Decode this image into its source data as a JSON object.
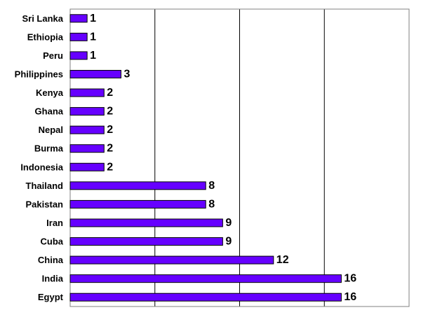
{
  "chart_data": {
    "type": "bar",
    "orientation": "horizontal",
    "title": "",
    "xlabel": "",
    "ylabel": "",
    "categories": [
      "Sri Lanka",
      "Ethiopia",
      "Peru",
      "Philippines",
      "Kenya",
      "Ghana",
      "Nepal",
      "Burma",
      "Indonesia",
      "Thailand",
      "Pakistan",
      "Iran",
      "Cuba",
      "China",
      "India",
      "Egypt"
    ],
    "values": [
      1,
      1,
      1,
      3,
      2,
      2,
      2,
      2,
      2,
      8,
      8,
      9,
      9,
      12,
      16,
      16
    ],
    "xlim": [
      0,
      20
    ],
    "x_gridlines": [
      5,
      10,
      15
    ],
    "x_tick_labels_shown": false,
    "legend": "none",
    "bar_color": "#6600FF",
    "bar_stroke": "#000000"
  }
}
